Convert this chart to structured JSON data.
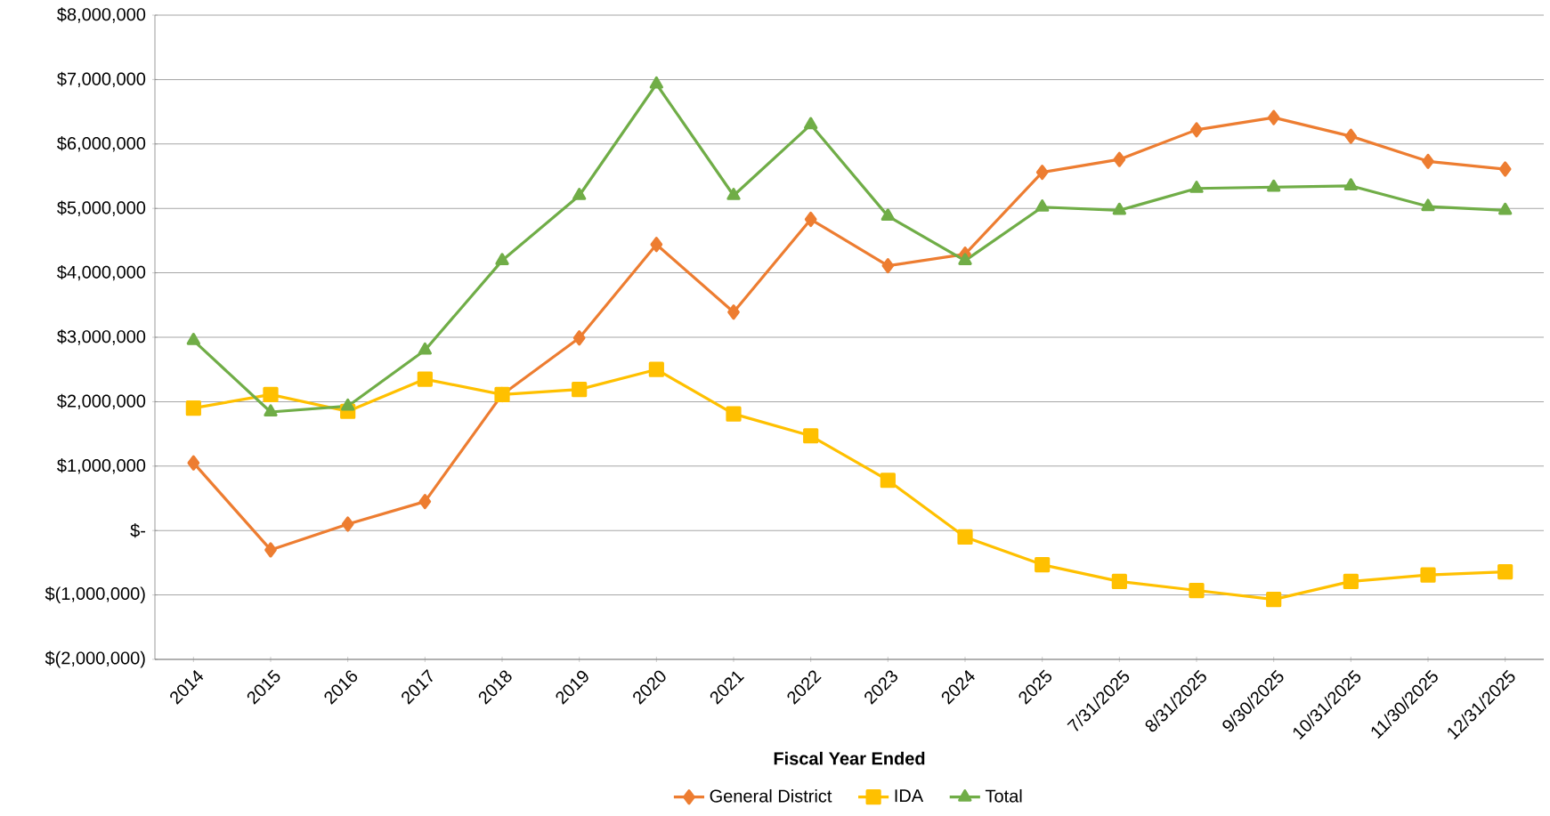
{
  "chart_data": {
    "type": "line",
    "xlabel": "Fiscal Year Ended",
    "categories": [
      "2014",
      "2015",
      "2016",
      "2017",
      "2018",
      "2019",
      "2020",
      "2021",
      "2022",
      "2023",
      "2024",
      "2025",
      "7/31/2025",
      "8/31/2025",
      "9/30/2025",
      "10/31/2025",
      "11/30/2025",
      "12/31/2025"
    ],
    "series": [
      {
        "name": "General District",
        "color": "#ed7d31",
        "marker": "diamond",
        "values": [
          1050000,
          -300000,
          100000,
          450000,
          2110000,
          2990000,
          4440000,
          3390000,
          4830000,
          4110000,
          4290000,
          5560000,
          5760000,
          6220000,
          6410000,
          6120000,
          5730000,
          5610000
        ]
      },
      {
        "name": "IDA",
        "color": "#ffc000",
        "marker": "square",
        "values": [
          1900000,
          2110000,
          1850000,
          2350000,
          2110000,
          2190000,
          2500000,
          1810000,
          1470000,
          780000,
          -100000,
          -530000,
          -790000,
          -930000,
          -1070000,
          -790000,
          -690000,
          -640000
        ]
      },
      {
        "name": "Total",
        "color": "#70ad47",
        "marker": "triangle",
        "values": [
          2950000,
          1840000,
          1930000,
          2800000,
          4190000,
          5200000,
          6930000,
          5200000,
          6300000,
          4880000,
          4190000,
          5020000,
          4970000,
          5310000,
          5330000,
          5350000,
          5030000,
          4970000
        ]
      }
    ],
    "ylim": [
      -2000000,
      8000000
    ],
    "yticks": [
      {
        "value": -2000000,
        "label": "$(2,000,000)"
      },
      {
        "value": -1000000,
        "label": "$(1,000,000)"
      },
      {
        "value": 0,
        "label": "$-"
      },
      {
        "value": 1000000,
        "label": "$1,000,000"
      },
      {
        "value": 2000000,
        "label": "$2,000,000"
      },
      {
        "value": 3000000,
        "label": "$3,000,000"
      },
      {
        "value": 4000000,
        "label": "$4,000,000"
      },
      {
        "value": 5000000,
        "label": "$5,000,000"
      },
      {
        "value": 6000000,
        "label": "$6,000,000"
      },
      {
        "value": 7000000,
        "label": "$7,000,000"
      },
      {
        "value": 8000000,
        "label": "$8,000,000"
      }
    ],
    "grid": "y",
    "legend": "bottom",
    "line_style": "solid"
  }
}
